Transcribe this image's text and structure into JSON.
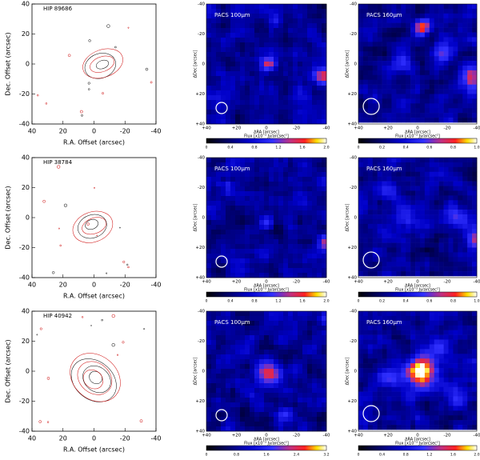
{
  "rows": [
    {
      "contour": {
        "label": "HIP 89686",
        "xlabel": "R.A. Offset (arcsec)",
        "ylabel": "Dec. Offset (arcsec)",
        "xticks": [
          "40",
          "20",
          "0",
          "-20",
          "-40"
        ],
        "yticks": [
          "40",
          "20",
          "0",
          "-20",
          "-40"
        ]
      },
      "images": [
        {
          "label": "PACS 100μm",
          "xlabel": "ΔRA [arcsec]",
          "ylabel": "ΔDec [arcsec]",
          "ticks": [
            "+40",
            "+20",
            "0",
            "-20",
            "-40"
          ],
          "colorbar_label": "Flux [x10⁻³ Jy/arcsec²]",
          "colorbar_ticks": [
            "0",
            "0.4",
            "0.8",
            "1.2",
            "1.6",
            "2.0"
          ]
        },
        {
          "label": "PACS 160μm",
          "xlabel": "ΔRA [arcsec]",
          "ylabel": "ΔDec [arcsec]",
          "ticks": [
            "+40",
            "+20",
            "0",
            "-20",
            "-40"
          ],
          "colorbar_label": "Flux [x10⁻³ Jy/arcsec²]",
          "colorbar_ticks": [
            "0",
            "0.2",
            "0.4",
            "0.6",
            "0.8",
            "1.0"
          ]
        }
      ]
    },
    {
      "contour": {
        "label": "HIP 38784",
        "xlabel": "R.A. Offset (arcsec)",
        "ylabel": "Dec. Offset (arcsec)",
        "xticks": [
          "40",
          "20",
          "0",
          "-20",
          "-40"
        ],
        "yticks": [
          "40",
          "20",
          "0",
          "-20",
          "-40"
        ]
      },
      "images": [
        {
          "label": "PACS 100μm",
          "xlabel": "ΔRA [arcsec]",
          "ylabel": "ΔDec [arcsec]",
          "ticks": [
            "+40",
            "+20",
            "0",
            "-20",
            "-40"
          ],
          "colorbar_label": "Flux [x10⁻³ Jy/arcsec²]",
          "colorbar_ticks": [
            "0",
            "0.4",
            "0.8",
            "1.2",
            "1.6",
            "2.0"
          ]
        },
        {
          "label": "PACS 160μm",
          "xlabel": "ΔRA [arcsec]",
          "ylabel": "ΔDec [arcsec]",
          "ticks": [
            "+40",
            "+20",
            "0",
            "-20",
            "-40"
          ],
          "colorbar_label": "Flux [x10⁻³ Jy/arcsec²]",
          "colorbar_ticks": [
            "0",
            "0.2",
            "0.4",
            "0.6",
            "0.8",
            "1.0"
          ]
        }
      ]
    },
    {
      "contour": {
        "label": "HIP 40942",
        "xlabel": "R.A. Offset (arcsec)",
        "ylabel": "Dec. Offset (arcsec)",
        "xticks": [
          "40",
          "20",
          "0",
          "-20",
          "-40"
        ],
        "yticks": [
          "40",
          "20",
          "0",
          "-20",
          "-40"
        ]
      },
      "images": [
        {
          "label": "PACS 100μm",
          "xlabel": "ΔRA [arcsec]",
          "ylabel": "ΔDec [arcsec]",
          "ticks": [
            "+40",
            "+20",
            "0",
            "-20",
            "-40"
          ],
          "colorbar_label": "Flux [x10⁻³ Jy/arcsec²]",
          "colorbar_ticks": [
            "0",
            "0.8",
            "1.6",
            "2.4",
            "3.2"
          ]
        },
        {
          "label": "PACS 160μm",
          "xlabel": "ΔRA [arcsec]",
          "ylabel": "ΔDec [arcsec]",
          "ticks": [
            "+40",
            "+20",
            "0",
            "-20",
            "-40"
          ],
          "colorbar_label": "Flux [x10⁻³ Jy/arcsec²]",
          "colorbar_ticks": [
            "0",
            "0.4",
            "0.8",
            "1.2",
            "1.6",
            "2.0"
          ]
        }
      ]
    }
  ]
}
